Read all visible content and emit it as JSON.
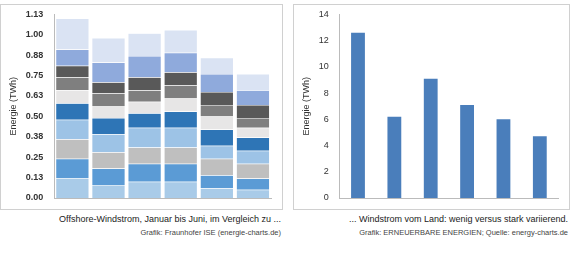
{
  "chart_data": [
    {
      "type": "bar",
      "ylabel": "Energie (TWh)",
      "annotations": [
        "Offshore-Windstrom, Januar bis Juni, im Vergleich zu ...",
        "Grafik: Fraunhofer ISE (energie-charts.de)"
      ],
      "categories": [
        null,
        null,
        null,
        null,
        null,
        null
      ],
      "stacked": true,
      "grid": false,
      "tick_labels": "y",
      "series": [
        {
          "color": "#a9cbe8",
          "values": [
            0.12,
            0.08,
            0.1,
            0.1,
            0.06,
            0.05
          ]
        },
        {
          "color": "#5b9bd5",
          "values": [
            0.12,
            0.1,
            0.11,
            0.11,
            0.08,
            0.07
          ]
        },
        {
          "color": "#bfbfbf",
          "values": [
            0.12,
            0.1,
            0.1,
            0.1,
            0.1,
            0.09
          ]
        },
        {
          "color": "#9dc3e6",
          "values": [
            0.12,
            0.11,
            0.12,
            0.12,
            0.08,
            0.08
          ]
        },
        {
          "color": "#2e75b6",
          "values": [
            0.1,
            0.1,
            0.09,
            0.1,
            0.1,
            0.08
          ]
        },
        {
          "color": "#e7e6e6",
          "values": [
            0.08,
            0.07,
            0.07,
            0.08,
            0.08,
            0.06
          ]
        },
        {
          "color": "#7f7f7f",
          "values": [
            0.08,
            0.08,
            0.07,
            0.08,
            0.07,
            0.06
          ]
        },
        {
          "color": "#595959",
          "values": [
            0.07,
            0.07,
            0.08,
            0.08,
            0.08,
            0.08
          ]
        },
        {
          "color": "#8faadc",
          "values": [
            0.1,
            0.12,
            0.13,
            0.12,
            0.11,
            0.09
          ]
        },
        {
          "color": "#dae3f3",
          "values": [
            0.19,
            0.15,
            0.14,
            0.14,
            0.1,
            0.1
          ]
        }
      ],
      "ylim": [
        0,
        1.125
      ],
      "yticks": [
        {
          "value": 0,
          "label": "0.00"
        },
        {
          "value": 0.125,
          "label": "0.13"
        },
        {
          "value": 0.25,
          "label": "0.25"
        },
        {
          "value": 0.375,
          "label": "0.38"
        },
        {
          "value": 0.5,
          "label": "0.50"
        },
        {
          "value": 0.625,
          "label": "0.63"
        },
        {
          "value": 0.75,
          "label": "0.75"
        },
        {
          "value": 0.875,
          "label": "0.88"
        },
        {
          "value": 1,
          "label": "1.00"
        },
        {
          "value": 1.125,
          "label": "1.13"
        }
      ]
    },
    {
      "type": "bar",
      "ylabel": "Energie (TWh)",
      "annotations": [
        "... Windstrom vom Land: wenig versus stark variierend.",
        "Grafik: ERNEUERBARE ENERGIEN; Quelle: energy-charts.de"
      ],
      "categories": [
        null,
        null,
        null,
        null,
        null,
        null
      ],
      "values": [
        12.6,
        6.2,
        9.1,
        7.1,
        6.0,
        4.7
      ],
      "color": "#4a7ebb",
      "grid": false,
      "tick_labels": "y",
      "ylim": [
        0,
        14
      ],
      "yticks": [
        0,
        2,
        4,
        6,
        8,
        10,
        12,
        14
      ]
    }
  ]
}
